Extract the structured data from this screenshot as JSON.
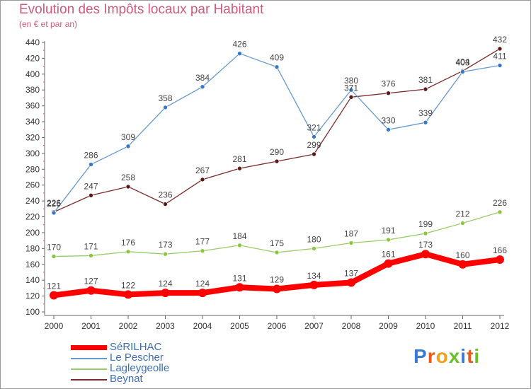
{
  "title": "Evolution des Impôts locaux par Habitant",
  "subtitle": "(en € et par an)",
  "brand": "Proxiti",
  "brand_colors": [
    "#3a7bd5",
    "#e85a1a",
    "#f0a020",
    "#6bbf2a",
    "#3a7bd5",
    "#e85a1a",
    "#6bbf2a"
  ],
  "chart_data": {
    "type": "line",
    "x": [
      "2000",
      "2001",
      "2002",
      "2003",
      "2004",
      "2005",
      "2006",
      "2007",
      "2008",
      "2009",
      "2010",
      "2011",
      "2012"
    ],
    "ylim": [
      100,
      440
    ],
    "yticks": [
      100,
      120,
      140,
      160,
      180,
      200,
      220,
      240,
      260,
      280,
      300,
      320,
      340,
      360,
      380,
      400,
      420,
      440
    ],
    "grid": false,
    "legend_position": "bottom-left",
    "series": [
      {
        "name": "SéRILHAC",
        "color": "#ff0000",
        "values": [
          121,
          127,
          122,
          124,
          124,
          131,
          129,
          134,
          137,
          161,
          173,
          160,
          166
        ]
      },
      {
        "name": "Le Pescher",
        "color": "#6699cc",
        "values": [
          225,
          286,
          309,
          358,
          384,
          426,
          409,
          321,
          380,
          330,
          339,
          403,
          411
        ]
      },
      {
        "name": "Lagleygeolle",
        "color": "#99cc66",
        "values": [
          170,
          171,
          176,
          173,
          177,
          184,
          175,
          180,
          187,
          191,
          199,
          212,
          226
        ]
      },
      {
        "name": "Beynat",
        "color": "#7a2a2a",
        "values": [
          226,
          247,
          258,
          236,
          267,
          281,
          290,
          299,
          371,
          376,
          381,
          404,
          432
        ]
      }
    ]
  }
}
